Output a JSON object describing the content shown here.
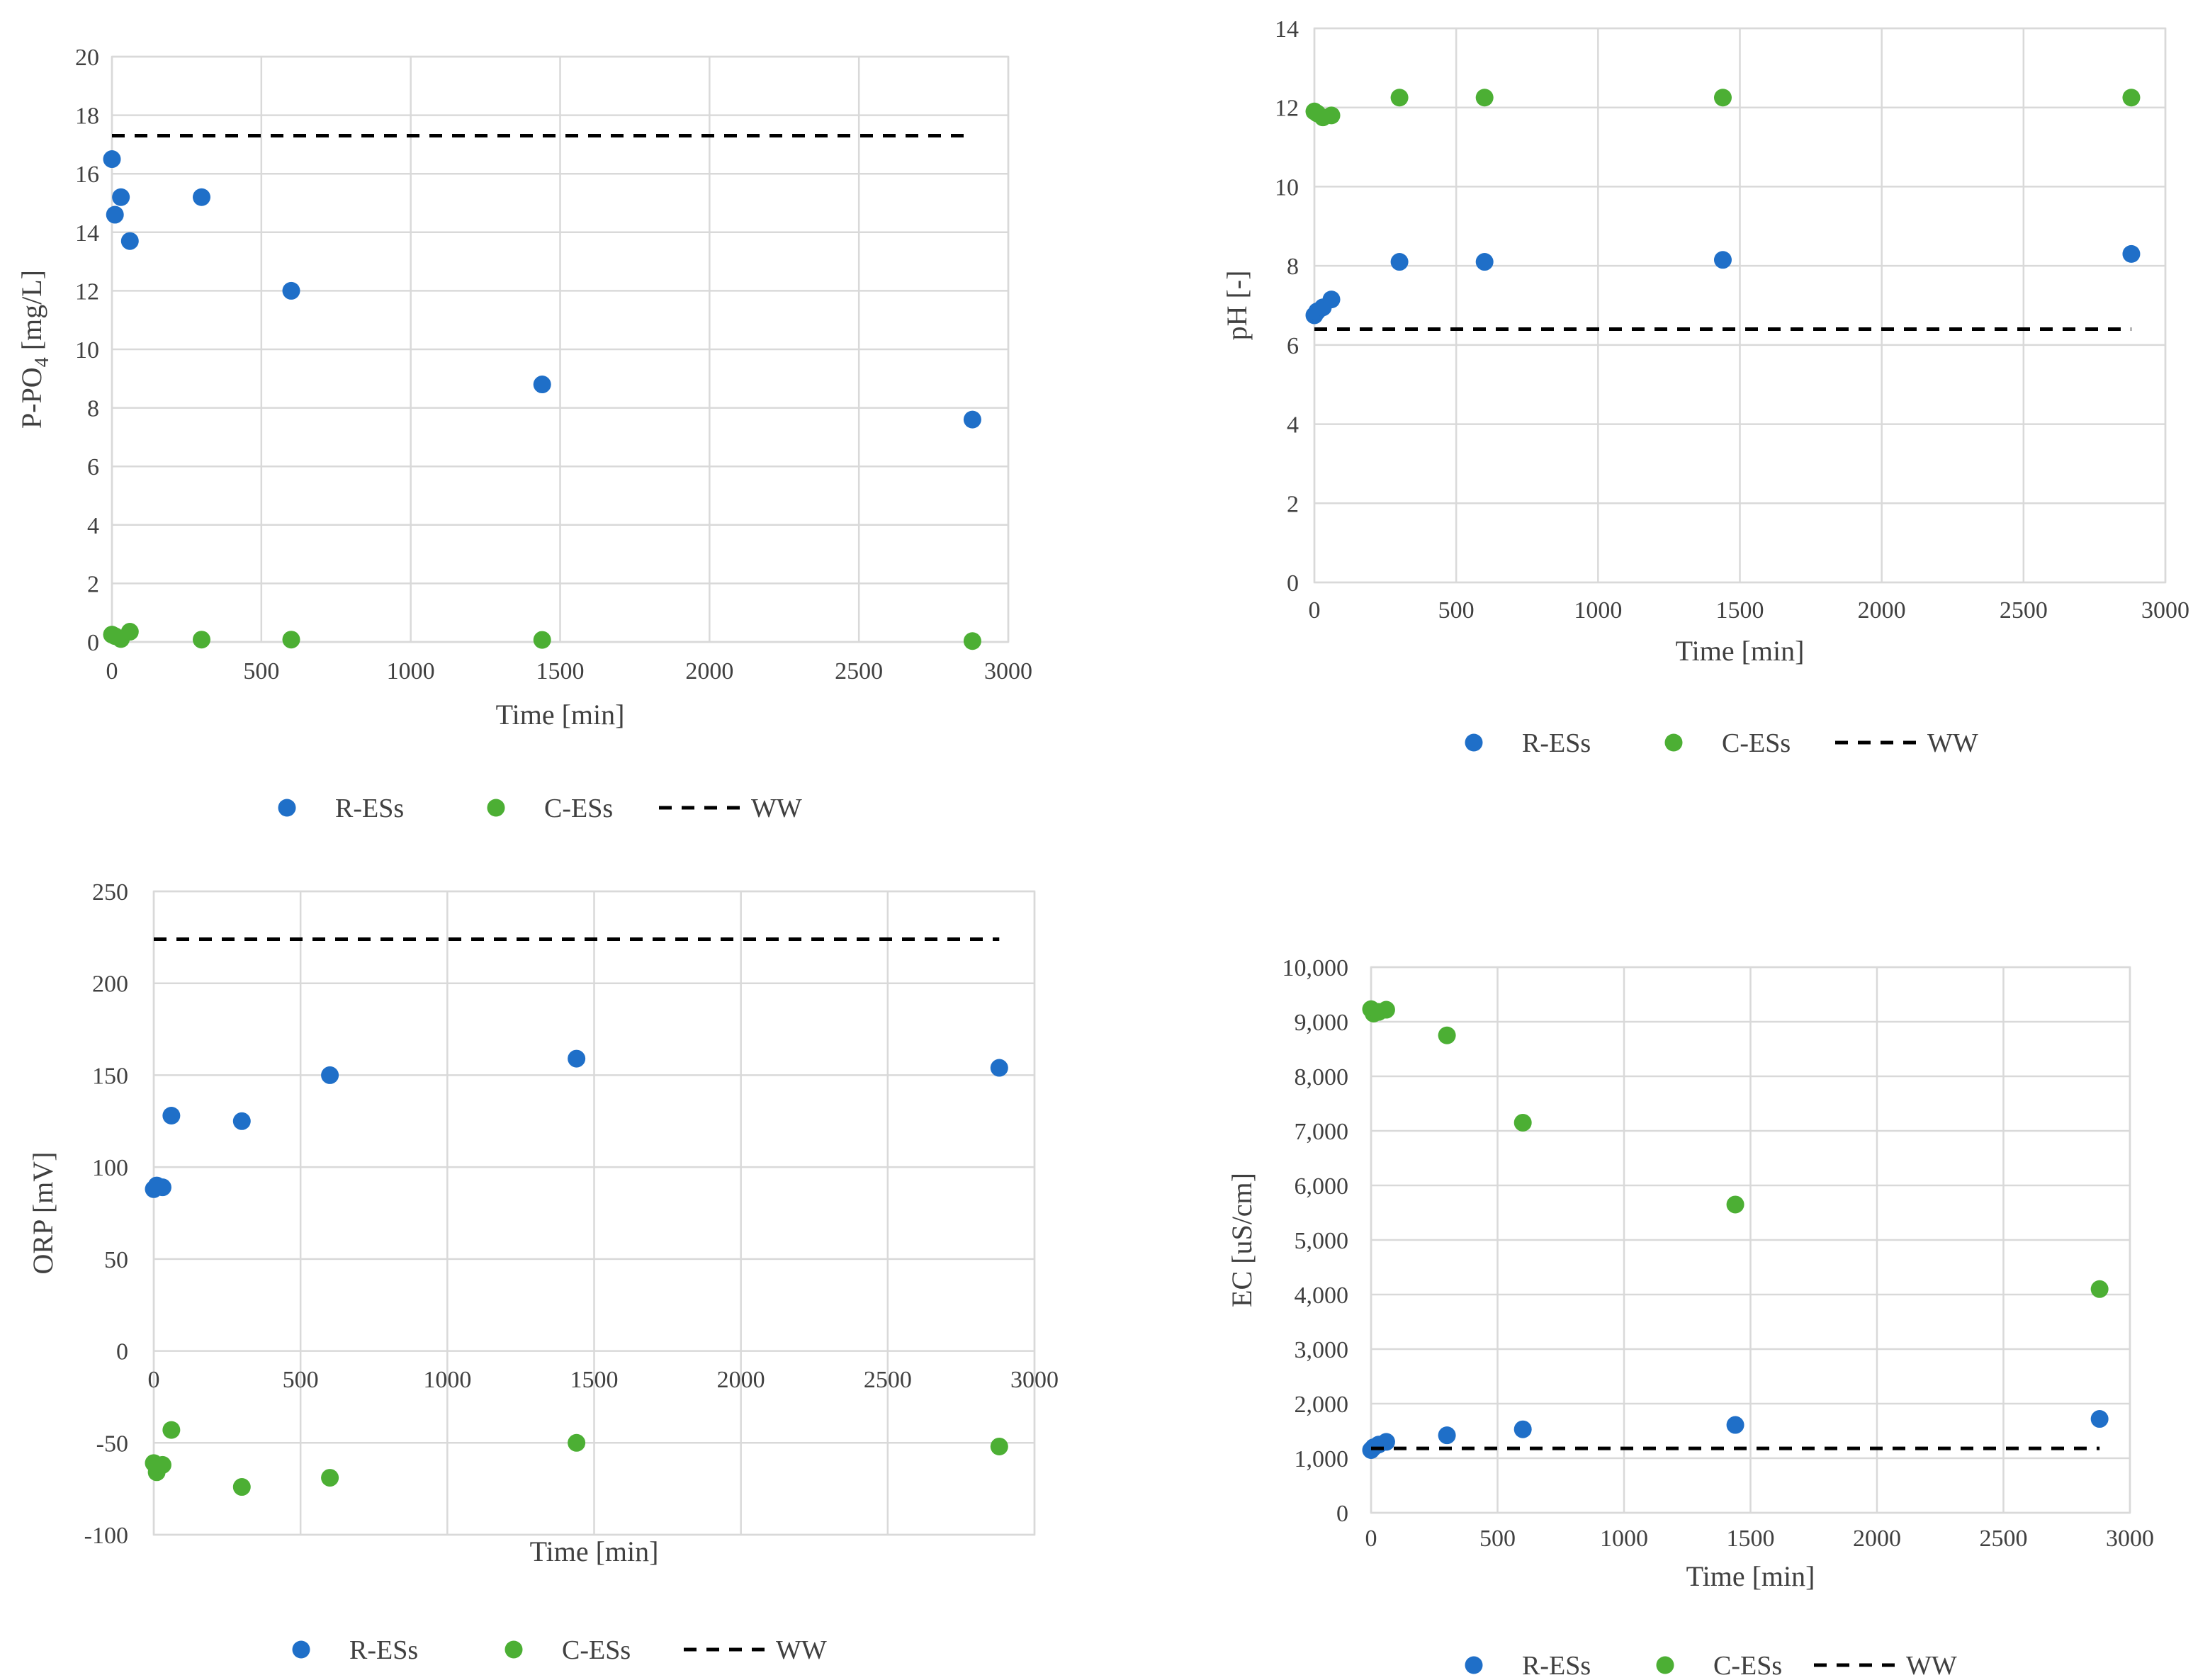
{
  "colors": {
    "r_ess": "#1f6fc8",
    "c_ess": "#4caf34",
    "ww": "#000000",
    "grid": "#d9d9d9",
    "text": "#404040"
  },
  "legend": {
    "r_ess": "R-ESs",
    "c_ess": "C-ESs",
    "ww": "WW"
  },
  "chart_data": [
    {
      "id": "ppo4",
      "type": "scatter",
      "xlabel": "Time [min]",
      "ylabel_main": "P-PO",
      "ylabel_sub": "4",
      "ylabel_tail": " [mg/L]",
      "xlim": [
        0,
        3000
      ],
      "ylim": [
        0,
        20
      ],
      "xticks": [
        0,
        500,
        1000,
        1500,
        2000,
        2500,
        3000
      ],
      "xtick_labels": [
        "0",
        "500",
        "1000",
        "1500",
        "2000",
        "2500",
        "3000"
      ],
      "yticks": [
        0,
        2,
        4,
        6,
        8,
        10,
        12,
        14,
        16,
        18,
        20
      ],
      "ytick_labels": [
        "0",
        "2",
        "4",
        "6",
        "8",
        "10",
        "12",
        "14",
        "16",
        "18",
        "20"
      ],
      "series": [
        {
          "name": "R-ESs",
          "kind": "points",
          "x": [
            0,
            10,
            30,
            60,
            300,
            600,
            1440,
            2880
          ],
          "y": [
            16.5,
            14.6,
            15.2,
            13.7,
            15.2,
            12.0,
            8.8,
            7.6
          ]
        },
        {
          "name": "C-ESs",
          "kind": "points",
          "x": [
            0,
            10,
            30,
            60,
            300,
            600,
            1440,
            2880
          ],
          "y": [
            0.25,
            0.2,
            0.1,
            0.35,
            0.08,
            0.08,
            0.07,
            0.03
          ]
        },
        {
          "name": "WW",
          "kind": "dashed",
          "x": [
            0,
            2880
          ],
          "y": [
            17.3,
            17.3
          ]
        }
      ]
    },
    {
      "id": "ph",
      "type": "scatter",
      "xlabel": "Time [min]",
      "ylabel_main": "pH [-]",
      "ylabel_sub": "",
      "ylabel_tail": "",
      "xlim": [
        0,
        3000
      ],
      "ylim": [
        0,
        14
      ],
      "xticks": [
        0,
        500,
        1000,
        1500,
        2000,
        2500,
        3000
      ],
      "xtick_labels": [
        "0",
        "500",
        "1000",
        "1500",
        "2000",
        "2500",
        "3000"
      ],
      "yticks": [
        0,
        2,
        4,
        6,
        8,
        10,
        12,
        14
      ],
      "ytick_labels": [
        "0",
        "2",
        "4",
        "6",
        "8",
        "10",
        "12",
        "14"
      ],
      "series": [
        {
          "name": "R-ESs",
          "kind": "points",
          "x": [
            0,
            10,
            30,
            60,
            300,
            600,
            1440,
            2880
          ],
          "y": [
            6.75,
            6.85,
            6.95,
            7.15,
            8.1,
            8.1,
            8.15,
            8.3
          ]
        },
        {
          "name": "C-ESs",
          "kind": "points",
          "x": [
            0,
            10,
            30,
            60,
            300,
            600,
            1440,
            2880
          ],
          "y": [
            11.9,
            11.85,
            11.75,
            11.8,
            12.25,
            12.25,
            12.25,
            12.25
          ]
        },
        {
          "name": "WW",
          "kind": "dashed",
          "x": [
            0,
            2880
          ],
          "y": [
            6.4,
            6.4
          ]
        }
      ]
    },
    {
      "id": "orp",
      "type": "scatter",
      "xlabel": "Time [min]",
      "ylabel_main": "ORP [mV]",
      "ylabel_sub": "",
      "ylabel_tail": "",
      "xlim": [
        0,
        3000
      ],
      "ylim": [
        -100,
        250
      ],
      "xticks": [
        0,
        500,
        1000,
        1500,
        2000,
        2500,
        3000
      ],
      "xtick_labels": [
        "0",
        "500",
        "1000",
        "1500",
        "2000",
        "2500",
        "3000"
      ],
      "yticks": [
        -100,
        -50,
        0,
        50,
        100,
        150,
        200,
        250
      ],
      "ytick_labels": [
        "-100",
        "-50",
        "0",
        "50",
        "100",
        "150",
        "200",
        "250"
      ],
      "series": [
        {
          "name": "R-ESs",
          "kind": "points",
          "x": [
            0,
            10,
            30,
            60,
            300,
            600,
            1440,
            2880
          ],
          "y": [
            88,
            90,
            89,
            128,
            125,
            150,
            159,
            154
          ]
        },
        {
          "name": "C-ESs",
          "kind": "points",
          "x": [
            0,
            10,
            30,
            60,
            300,
            600,
            1440,
            2880
          ],
          "y": [
            -61,
            -66,
            -62,
            -43,
            -74,
            -69,
            -50,
            -52
          ]
        },
        {
          "name": "WW",
          "kind": "dashed",
          "x": [
            0,
            2880
          ],
          "y": [
            224,
            224
          ]
        }
      ]
    },
    {
      "id": "ec",
      "type": "scatter",
      "xlabel": "Time [min]",
      "ylabel_main": "EC [uS/cm]",
      "ylabel_sub": "",
      "ylabel_tail": "",
      "xlim": [
        0,
        3000
      ],
      "ylim": [
        0,
        10000
      ],
      "xticks": [
        0,
        500,
        1000,
        1500,
        2000,
        2500,
        3000
      ],
      "xtick_labels": [
        "0",
        "500",
        "1000",
        "1500",
        "2000",
        "2500",
        "3000"
      ],
      "yticks": [
        0,
        1000,
        2000,
        3000,
        4000,
        5000,
        6000,
        7000,
        8000,
        9000,
        10000
      ],
      "ytick_labels": [
        "0",
        "1,000",
        "2,000",
        "3,000",
        "4,000",
        "5,000",
        "6,000",
        "7,000",
        "8,000",
        "9,000",
        "10,000"
      ],
      "series": [
        {
          "name": "R-ESs",
          "kind": "points",
          "x": [
            0,
            10,
            30,
            60,
            300,
            600,
            1440,
            2880
          ],
          "y": [
            1150,
            1200,
            1250,
            1300,
            1420,
            1530,
            1610,
            1720
          ]
        },
        {
          "name": "C-ESs",
          "kind": "points",
          "x": [
            0,
            10,
            30,
            60,
            300,
            600,
            1440,
            2880
          ],
          "y": [
            9230,
            9150,
            9180,
            9220,
            8750,
            7150,
            5650,
            4100
          ]
        },
        {
          "name": "WW",
          "kind": "dashed",
          "x": [
            0,
            2880
          ],
          "y": [
            1180,
            1180
          ]
        }
      ]
    }
  ]
}
